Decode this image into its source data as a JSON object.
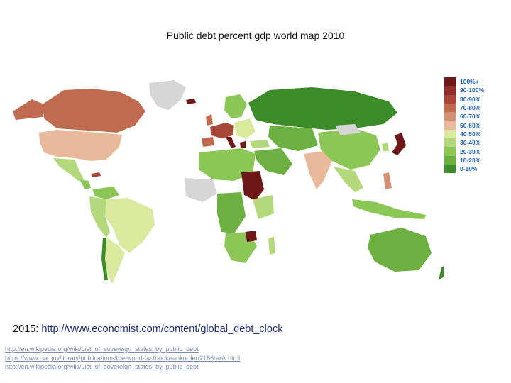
{
  "title": "Public debt percent gdp world map 2010",
  "legend": [
    {
      "label": "100%+",
      "color": "#6e1717"
    },
    {
      "label": "90-100%",
      "color": "#8e2f2b"
    },
    {
      "label": "80-90%",
      "color": "#a84638"
    },
    {
      "label": "70-80%",
      "color": "#c06a50"
    },
    {
      "label": "60-70%",
      "color": "#d58f72"
    },
    {
      "label": "50-60%",
      "color": "#e8b99a"
    },
    {
      "label": "40-50%",
      "color": "#d9ea9f"
    },
    {
      "label": "30-40%",
      "color": "#b3d97c"
    },
    {
      "label": "20-30%",
      "color": "#8cc657"
    },
    {
      "label": "10-20%",
      "color": "#6bb040"
    },
    {
      "label": "0-10%",
      "color": "#3c8c2a"
    }
  ],
  "no_data_color": "#d6d6d6",
  "note": {
    "year": "2015:",
    "url": "http://www.economist.com/content/global_debt_clock"
  },
  "sources": [
    "http://en.wikipedia.org/wiki/List_of_sovereign_states_by_public_debt",
    "https://www.cia.gov/library/publications/the-world-factbook/rankorder/2186rank.html",
    "http://en.wikipedia.org/wiki/List_of_sovereign_states_by_public_debt"
  ]
}
